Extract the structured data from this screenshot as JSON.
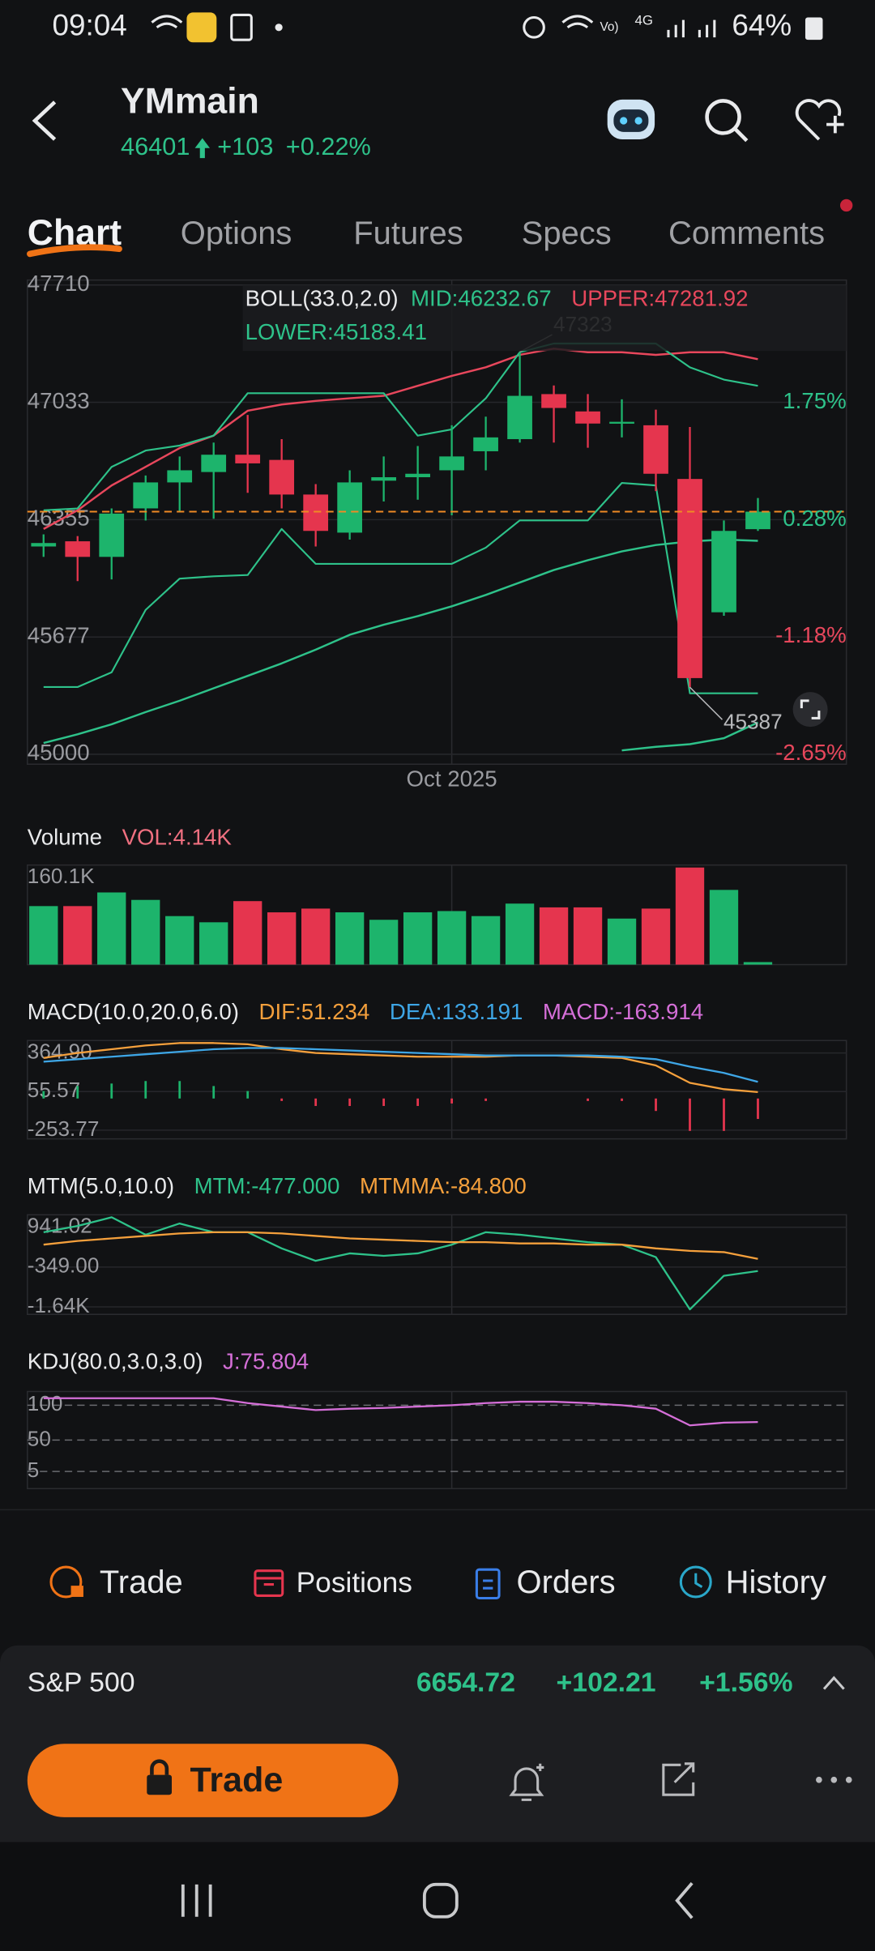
{
  "status_bar": {
    "time": "09:04",
    "battery": "64%"
  },
  "header": {
    "title": "YMmain",
    "price": 46401,
    "change": "+103",
    "change_pct": "+0.22%"
  },
  "tabs": {
    "items": [
      "Chart",
      "Options",
      "Futures",
      "Specs",
      "Comments"
    ],
    "active": 0
  },
  "chart_data": [
    {
      "type": "candlestick",
      "indicator": "BOLL(33.0,2.0)",
      "categories": [
        null,
        null,
        null,
        null,
        null,
        null,
        null,
        null,
        null,
        null,
        null,
        null,
        "Oct 2025",
        null,
        null,
        null,
        null,
        null,
        null,
        null,
        null,
        null
      ],
      "open": [
        46200,
        46230,
        46140,
        46420,
        46570,
        46630,
        46730,
        46700,
        46500,
        46280,
        46580,
        46600,
        46640,
        46750,
        46820,
        47080,
        46980,
        46910,
        46900,
        46590,
        45820,
        46300
      ],
      "high": [
        46270,
        46260,
        46420,
        46610,
        46720,
        46800,
        46960,
        46820,
        46560,
        46640,
        46720,
        46780,
        46900,
        46950,
        47323,
        47130,
        47080,
        47050,
        46990,
        46890,
        46350,
        46480
      ],
      "low": [
        46140,
        46000,
        46010,
        46350,
        46400,
        46360,
        46510,
        46420,
        46200,
        46240,
        46460,
        46470,
        46380,
        46640,
        46800,
        46800,
        46770,
        46830,
        46520,
        45387,
        45800,
        46290
      ],
      "close": [
        46220,
        46140,
        46390,
        46570,
        46640,
        46730,
        46680,
        46500,
        46290,
        46570,
        46600,
        46620,
        46720,
        46830,
        47070,
        47000,
        46910,
        46920,
        46620,
        45440,
        46290,
        46401
      ],
      "up_color": "#1db46c",
      "down_color": "#e5354e",
      "series": [
        {
          "name": "MID:46232.67",
          "color": "#2ec28a",
          "values": [
            45065,
            45115,
            45173,
            45244,
            45309,
            45381,
            45453,
            45525,
            45604,
            45690,
            45748,
            45798,
            45855,
            45920,
            45992,
            46064,
            46121,
            46172,
            46208,
            46229,
            46240,
            46232.67
          ]
        },
        {
          "name": "UPPER:47281.92",
          "color": "#e8475c",
          "values": [
            46301,
            46409,
            46553,
            46660,
            46768,
            46840,
            46984,
            47020,
            47041,
            47056,
            47070,
            47128,
            47185,
            47235,
            47307,
            47343,
            47322,
            47322,
            47307,
            47322,
            47322,
            47281.92
          ]
        },
        {
          "name": "LOWER:45183.41",
          "color": "#2ec28a",
          "values": [
            null,
            null,
            null,
            null,
            null,
            null,
            null,
            null,
            null,
            null,
            null,
            null,
            null,
            null,
            null,
            null,
            null,
            45022,
            45043,
            45058,
            45093,
            45183.41
          ]
        }
      ],
      "lines": [
        {
          "color": "#2ec28a",
          "values": [
            46409,
            46420,
            46660,
            46754,
            46783,
            46840,
            47085,
            47085,
            47085,
            47085,
            47085,
            46840,
            46876,
            47056,
            47322,
            47372,
            47372,
            47372,
            47372,
            47235,
            47164,
            47128
          ]
        },
        {
          "color": "#2ec28a",
          "values": [
            45388,
            45388,
            45474,
            45834,
            46014,
            46028,
            46035,
            46301,
            46100,
            46100,
            46100,
            46100,
            46100,
            46193,
            46351,
            46351,
            46351,
            46567,
            46553,
            45352,
            45352,
            45352
          ]
        }
      ],
      "ylim": [
        45000,
        47710
      ],
      "yticks": [
        47710,
        47033,
        46355,
        45677,
        45000
      ],
      "y2lim": [
        -2.65,
        3.22
      ],
      "y2ticks": [
        {
          "value": 1.75,
          "label": "1.75%"
        },
        {
          "value": 0.28,
          "label": "0.28%"
        },
        {
          "value": -1.18,
          "label": "-1.18%"
        },
        {
          "value": -2.65,
          "label": "-2.65%"
        }
      ],
      "grid": true
    },
    {
      "type": "bar",
      "title": "Volume",
      "indicator": "VOL:4.14K",
      "values": [
        96500,
        96500,
        119000,
        106700,
        80000,
        69800,
        104700,
        86200,
        92400,
        86200,
        73900,
        86200,
        88300,
        80000,
        100600,
        94400,
        94400,
        75900,
        92400,
        160100,
        123200,
        4140
      ],
      "ylim": [
        0,
        160100
      ],
      "yticks": [
        {
          "value": 160100,
          "label": "160.1K"
        }
      ],
      "grid": false
    },
    {
      "type": "line",
      "title": "MACD(10.0,20.0,6.0)",
      "series": [
        {
          "name": "DIF:51.234",
          "color": "#f5a03c",
          "values": [
            325,
            365,
            395,
            425,
            445,
            445,
            435,
            395,
            365,
            355,
            345,
            335,
            335,
            335,
            345,
            345,
            335,
            325,
            265,
            125,
            75,
            51.234
          ]
        },
        {
          "name": "DEA:133.191",
          "color": "#3ea6e6",
          "values": [
            295,
            315,
            335,
            355,
            375,
            395,
            405,
            405,
            395,
            385,
            375,
            365,
            355,
            345,
            345,
            345,
            345,
            335,
            315,
            255,
            205,
            133.191
          ]
        },
        {
          "name": "MACD:-163.914",
          "color": "#d56fd8",
          "type": "bar",
          "values": [
            60,
            100,
            120,
            140,
            140,
            100,
            60,
            -20,
            -60,
            -60,
            -60,
            -60,
            -40,
            -20,
            0,
            0,
            -20,
            -20,
            -100,
            -260,
            -260,
            -163.914
          ]
        }
      ],
      "ylim": [
        -323.6,
        464.7
      ],
      "yticks": [
        {
          "value": 364.9,
          "label": "364.90"
        },
        55.57,
        -253.77
      ],
      "grid": true
    },
    {
      "type": "line",
      "title": "MTM(5.0,10.0)",
      "series": [
        {
          "name": "MTM:-477.000",
          "color": "#2ec28a",
          "values": [
            780,
            982,
            1264,
            700,
            1063,
            780,
            780,
            256,
            -147,
            93,
            13,
            93,
            377,
            780,
            700,
            578,
            457,
            377,
            -25,
            -1718,
            -630,
            -477
          ]
        },
        {
          "name": "MTMMA:-84.800",
          "color": "#f5a03c",
          "values": [
            377,
            497,
            578,
            660,
            740,
            780,
            780,
            740,
            660,
            578,
            537,
            497,
            457,
            457,
            417,
            417,
            377,
            377,
            256,
            175,
            135,
            -84.8
          ]
        }
      ],
      "ylim": [
        -1881,
        1344
      ],
      "yticks": [
        {
          "value": 941.02,
          "label": "941.02"
        },
        {
          "value": -349,
          "label": "-349.00"
        },
        {
          "value": -1639.02,
          "label": "-1.64K"
        }
      ],
      "grid": true
    },
    {
      "type": "line",
      "title": "KDJ(80.0,3.0,3.0)",
      "series": [
        {
          "name": "J:75.804",
          "color": "#d56fd8",
          "values": [
            110,
            110,
            110,
            110,
            110,
            110,
            103,
            98,
            93,
            95,
            96,
            98,
            100,
            103,
            105,
            105,
            103,
            100,
            95,
            71,
            75,
            75.804
          ]
        }
      ],
      "ylim": [
        -19.6,
        119.6
      ],
      "yticks": [
        100,
        50,
        5
      ],
      "grid": "dashed"
    }
  ],
  "actions": [
    "Trade",
    "Positions",
    "Orders",
    "History"
  ],
  "ticker": {
    "name": "S&P 500",
    "price": 6654.72,
    "change": "+102.21",
    "change_pct": "+1.56%"
  },
  "trade_button": "Trade"
}
